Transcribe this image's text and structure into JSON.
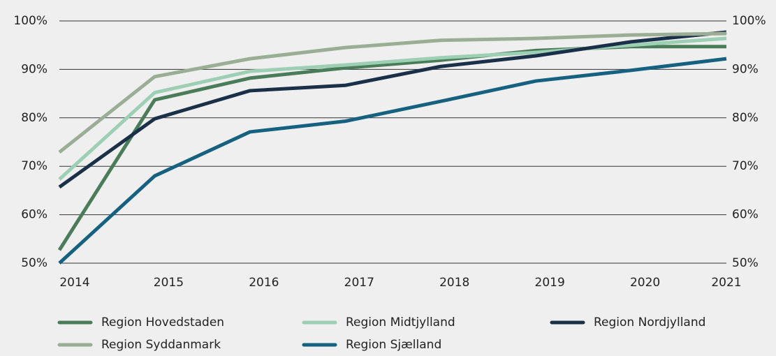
{
  "chart_data": {
    "type": "line",
    "x": [
      "2014",
      "2015",
      "2016",
      "2017",
      "2018",
      "2019",
      "2020",
      "2021"
    ],
    "ylim": [
      50,
      100
    ],
    "yticks": [
      {
        "value": 50,
        "label": "50%"
      },
      {
        "value": 60,
        "label": "60%"
      },
      {
        "value": 70,
        "label": "70%"
      },
      {
        "value": 80,
        "label": "80%"
      },
      {
        "value": 90,
        "label": "90%"
      },
      {
        "value": 100,
        "label": "100%"
      }
    ],
    "grid": true,
    "series": [
      {
        "name": "Region Hovedstaden",
        "color": "#4a7c59",
        "values": [
          52.7,
          83.7,
          88.2,
          90.3,
          91.9,
          93.9,
          94.7,
          94.7
        ]
      },
      {
        "name": "Region Midtjylland",
        "color": "#9ccfb4",
        "values": [
          67.3,
          85.2,
          89.6,
          90.9,
          92.4,
          93.5,
          95.0,
          96.4
        ]
      },
      {
        "name": "Region Nordjylland",
        "color": "#1a3048",
        "values": [
          65.7,
          79.8,
          85.6,
          86.7,
          90.6,
          92.8,
          95.7,
          97.7
        ]
      },
      {
        "name": "Region Syddanmark",
        "color": "#9aae96",
        "values": [
          72.9,
          88.5,
          92.2,
          94.5,
          96.0,
          96.4,
          97.1,
          97.4
        ]
      },
      {
        "name": "Region Sjælland",
        "color": "#15617f",
        "values": [
          50.0,
          68.0,
          77.1,
          79.3,
          83.4,
          87.6,
          89.8,
          92.2
        ]
      }
    ]
  }
}
